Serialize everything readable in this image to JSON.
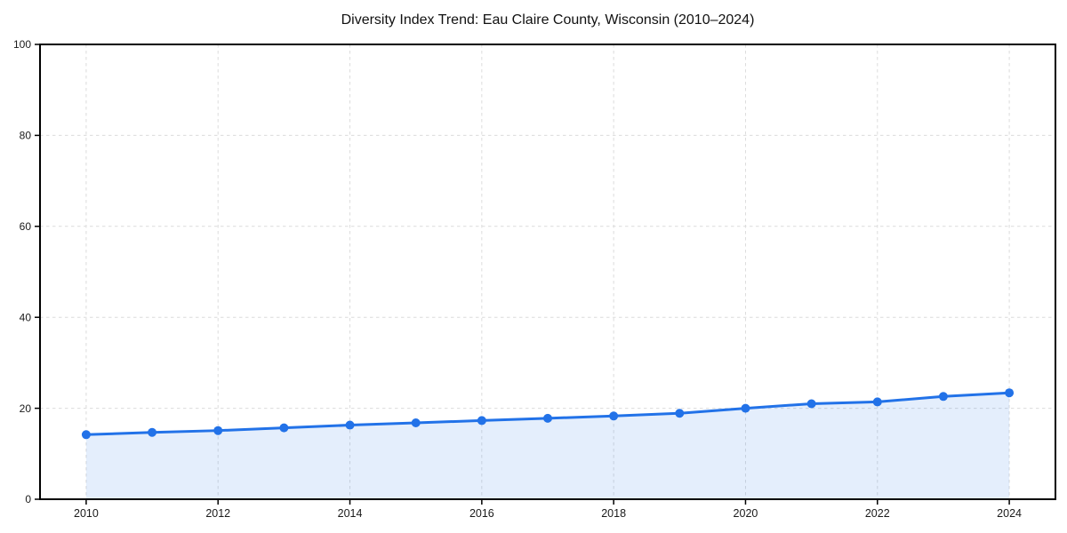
{
  "chart_data": {
    "type": "area",
    "title": "Diversity Index Trend: Eau Claire County, Wisconsin (2010–2024)",
    "series_name": "Diversity Index",
    "x": [
      2010,
      2011,
      2012,
      2013,
      2014,
      2015,
      2016,
      2017,
      2018,
      2019,
      2020,
      2021,
      2022,
      2023,
      2024
    ],
    "values": [
      14.2,
      14.7,
      15.1,
      15.7,
      16.3,
      16.8,
      17.3,
      17.8,
      18.3,
      18.9,
      20.0,
      21.0,
      21.4,
      22.6,
      23.4
    ],
    "xticks": [
      2010,
      2012,
      2014,
      2016,
      2018,
      2020,
      2022,
      2024
    ],
    "yticks": [
      0,
      20,
      40,
      60,
      80,
      100
    ],
    "xlim": [
      2009.3,
      2024.7
    ],
    "ylim": [
      0,
      100
    ],
    "xlabel": "",
    "ylabel": "",
    "grid": true,
    "legend": "none",
    "marker": "circle",
    "colors": {
      "line": "#2272e8",
      "fill": "rgba(34,114,232,0.12)",
      "grid": "#dcdcdc",
      "axis": "#000000",
      "text": "#1a1a1a"
    }
  }
}
